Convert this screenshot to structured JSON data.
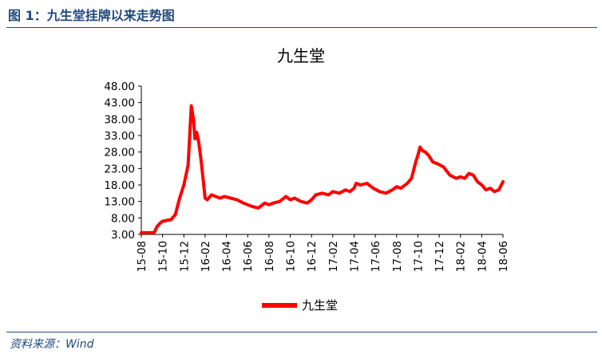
{
  "figure": {
    "title": "图 1：九生堂挂牌以来走势图",
    "source": "资料来源：Wind"
  },
  "colors": {
    "brand": "#1f497d",
    "series": "#ff0000",
    "axis": "#000000"
  },
  "chart_data": {
    "type": "line",
    "title": "九生堂",
    "xlabel": "",
    "ylabel": "",
    "ylim": [
      3,
      48
    ],
    "yticks": [
      "3.00",
      "8.00",
      "13.00",
      "18.00",
      "23.00",
      "28.00",
      "33.00",
      "38.00",
      "43.00",
      "48.00"
    ],
    "xticks": [
      "15-08",
      "15-10",
      "15-12",
      "16-02",
      "16-04",
      "16-06",
      "16-08",
      "16-10",
      "16-12",
      "17-02",
      "17-04",
      "17-06",
      "17-08",
      "17-10",
      "17-12",
      "18-02",
      "18-04",
      "18-06"
    ],
    "grid": false,
    "legend": "bottom",
    "series": [
      {
        "name": "九生堂",
        "x": [
          0,
          0.6,
          0.75,
          0.9,
          1.0,
          1.4,
          1.6,
          1.8,
          2.0,
          2.2,
          2.35,
          2.45,
          2.52,
          2.6,
          2.7,
          2.8,
          2.9,
          3.0,
          3.1,
          3.3,
          3.5,
          3.7,
          3.9,
          4.2,
          4.5,
          4.8,
          5.0,
          5.2,
          5.5,
          5.8,
          6.0,
          6.2,
          6.5,
          6.8,
          7.0,
          7.2,
          7.5,
          7.8,
          8.0,
          8.2,
          8.5,
          8.8,
          9.0,
          9.3,
          9.6,
          9.8,
          10.0,
          10.1,
          10.3,
          10.6,
          10.9,
          11.2,
          11.5,
          11.8,
          12.0,
          12.2,
          12.5,
          12.7,
          12.9,
          13.0,
          13.1,
          13.2,
          13.35,
          13.5,
          13.7,
          13.9,
          14.2,
          14.5,
          14.8,
          15.0,
          15.2,
          15.4,
          15.6,
          15.8,
          16.0,
          16.2,
          16.4,
          16.6,
          16.8,
          17.0
        ],
        "values": [
          3.5,
          3.5,
          5.5,
          6.5,
          7.0,
          7.5,
          9.0,
          14.0,
          18.0,
          24.0,
          42.0,
          38.0,
          32.0,
          34.0,
          31.0,
          26.0,
          20.0,
          14.0,
          13.5,
          15.0,
          14.5,
          14.0,
          14.5,
          14.0,
          13.5,
          12.5,
          12.0,
          11.5,
          11.0,
          12.5,
          12.0,
          12.5,
          13.0,
          14.5,
          13.5,
          14.0,
          13.0,
          12.5,
          13.5,
          15.0,
          15.5,
          15.0,
          16.0,
          15.5,
          16.5,
          16.0,
          17.0,
          18.5,
          18.0,
          18.5,
          17.0,
          16.0,
          15.5,
          16.5,
          17.5,
          17.0,
          18.5,
          20.0,
          25.0,
          27.0,
          29.5,
          28.5,
          28.0,
          27.0,
          25.0,
          24.5,
          23.5,
          21.0,
          20.0,
          20.5,
          20.0,
          21.5,
          21.0,
          19.0,
          18.0,
          16.5,
          17.0,
          16.0,
          16.5,
          19.0
        ]
      }
    ]
  }
}
